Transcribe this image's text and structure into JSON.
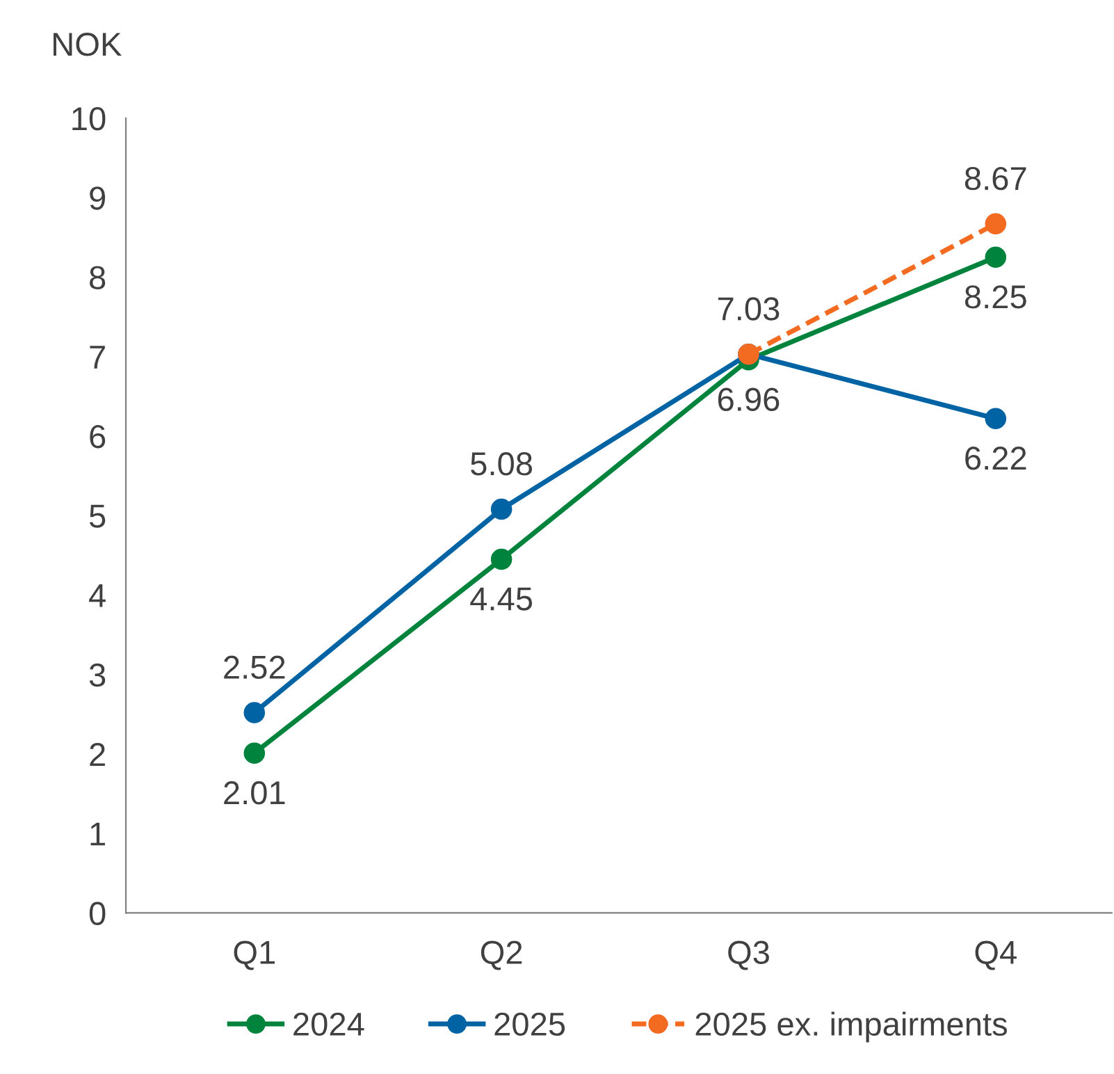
{
  "chart_data": {
    "type": "line",
    "ylabel": "NOK",
    "categories": [
      "Q1",
      "Q2",
      "Q3",
      "Q4"
    ],
    "series": [
      {
        "name": "2024",
        "color": "#00843d",
        "values": [
          2.01,
          4.45,
          6.96,
          8.25
        ],
        "value_labels": [
          "2.01",
          "4.45",
          "6.96",
          "8.25"
        ]
      },
      {
        "name": "2025",
        "color": "#0063a3",
        "values": [
          2.52,
          5.08,
          7.03,
          6.22
        ],
        "value_labels": [
          "2.52",
          "5.08",
          "7.03",
          "6.22"
        ]
      },
      {
        "name": "2025 ex. impairments",
        "color": "#f26b21",
        "line_style": "dashed",
        "values": [
          null,
          null,
          7.03,
          8.67
        ],
        "value_labels": [
          null,
          null,
          null,
          "8.67"
        ]
      }
    ],
    "ylim": [
      0,
      10
    ],
    "yticks": [
      0,
      1,
      2,
      3,
      4,
      5,
      6,
      7,
      8,
      9,
      10
    ],
    "grid": false,
    "legend": "bottom",
    "marker": "circle",
    "line_style": "solid"
  }
}
